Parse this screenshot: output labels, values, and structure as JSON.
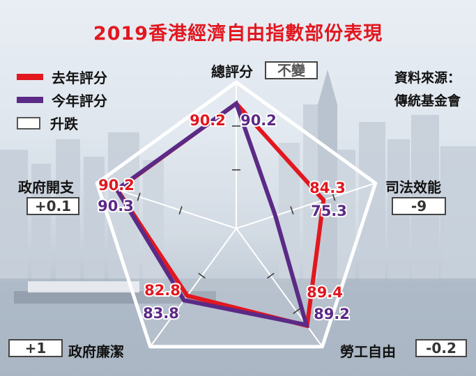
{
  "title": "2019香港經濟自由指數部份表現",
  "legend": {
    "last_year": "去年評分",
    "this_year": "今年評分",
    "change": "升跌"
  },
  "source": {
    "line1": "資料來源：",
    "line2": "傳統基金會"
  },
  "colors": {
    "last_year": "#e2171f",
    "this_year": "#5b2a86",
    "frame": "#ffffff"
  },
  "chart_data": {
    "type": "radar",
    "title": "2019香港經濟自由指數部份表現",
    "categories": [
      "總評分",
      "司法效能",
      "勞工自由",
      "政府廉潔",
      "政府開支"
    ],
    "series": [
      {
        "name": "去年評分",
        "values": [
          90.2,
          84.3,
          89.4,
          82.8,
          90.2
        ]
      },
      {
        "name": "今年評分",
        "values": [
          90.2,
          75.3,
          89.2,
          83.8,
          90.3
        ]
      }
    ],
    "value_labels": {
      "last_year": [
        "90.2",
        "84.3",
        "89.4",
        "82.8",
        "90.2"
      ],
      "this_year": [
        "90.2",
        "75.3",
        "89.2",
        "83.8",
        "90.3"
      ]
    },
    "changes": [
      "不變",
      "-9",
      "-0.2",
      "+1",
      "+0.1"
    ]
  }
}
